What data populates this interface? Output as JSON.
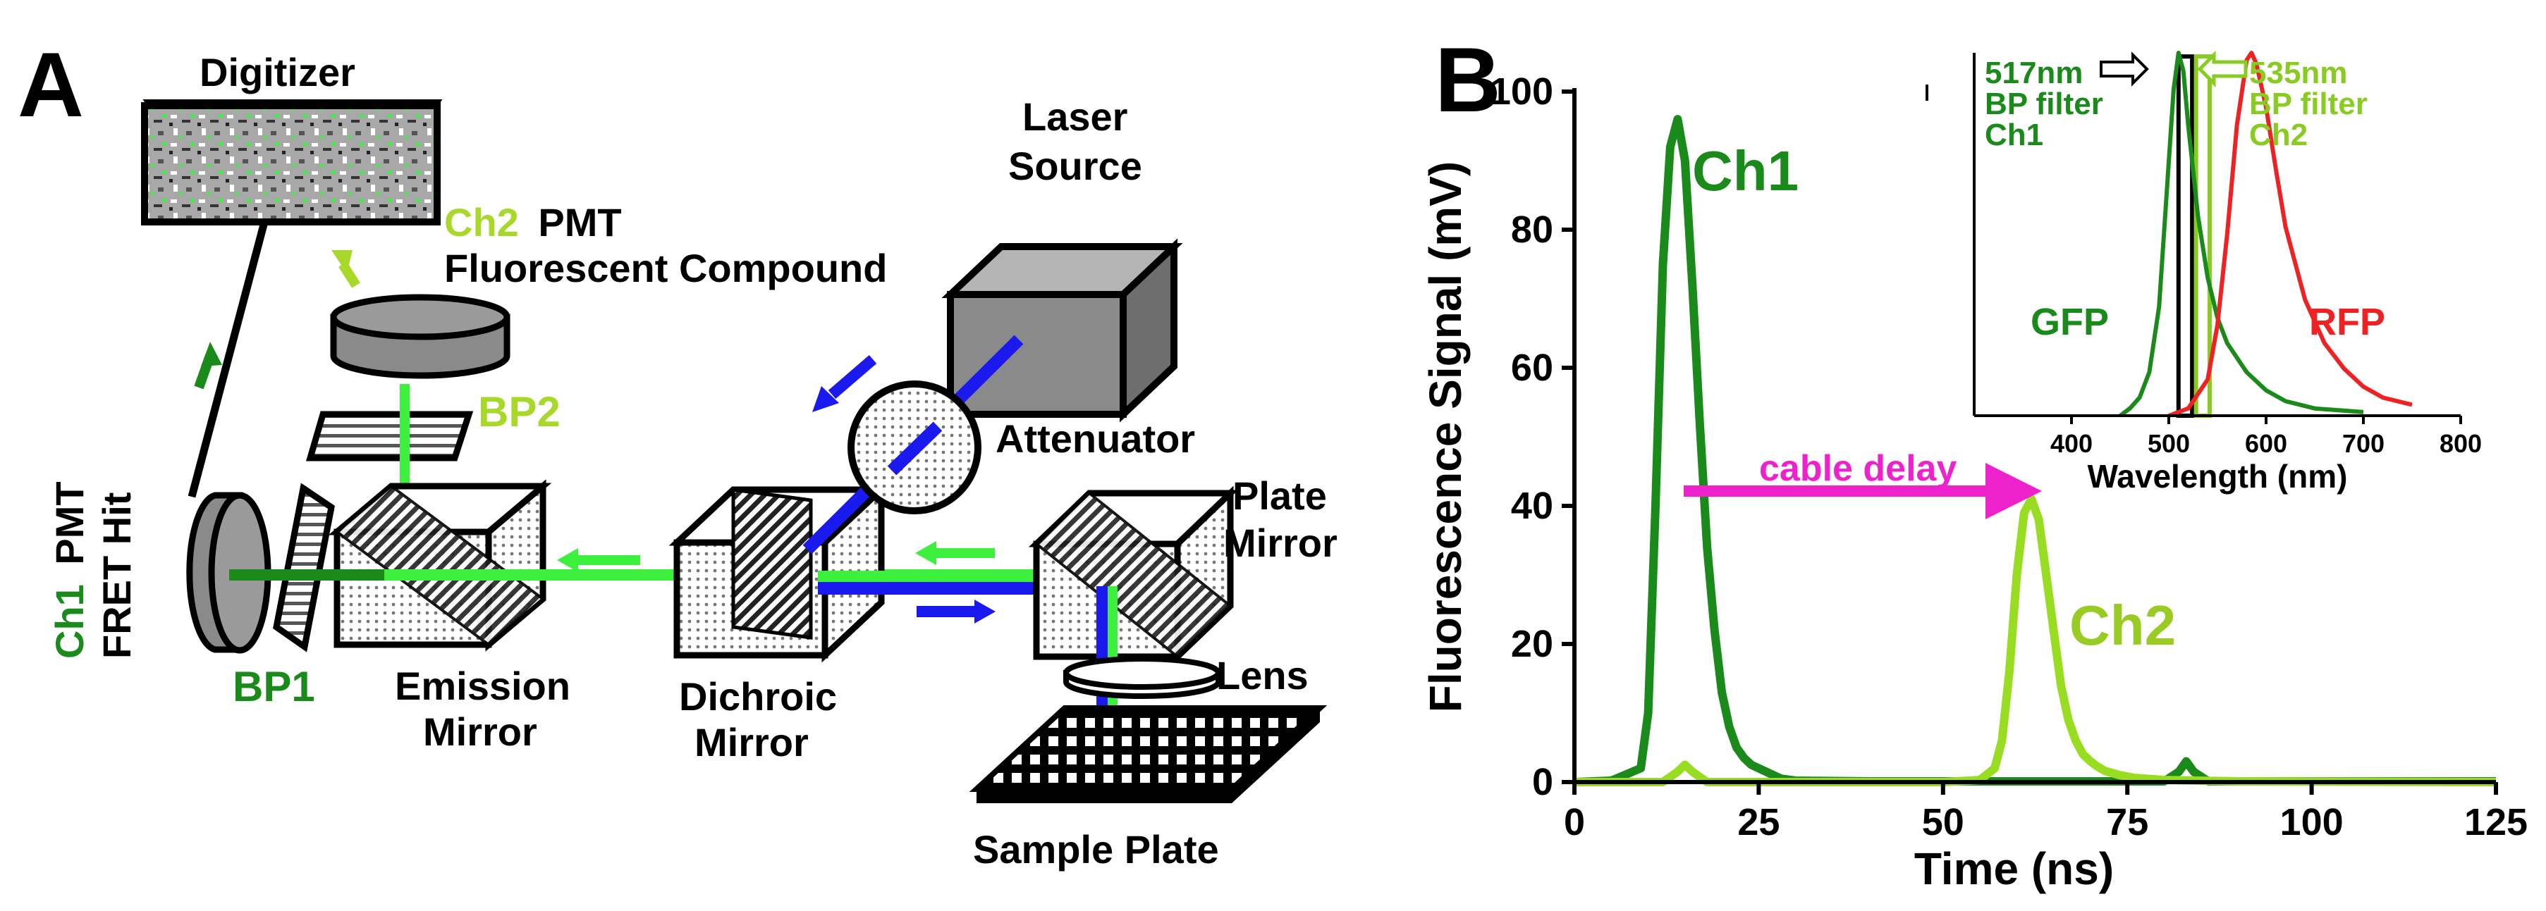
{
  "panels": {
    "a": {
      "letter": "A",
      "digitizer": "Digitizer",
      "ch2_pmt": {
        "channel": "Ch2",
        "rest": "PMT"
      },
      "fluorescent_compound": "Fluorescent Compound",
      "laser_source": [
        "Laser",
        "Source"
      ],
      "attenuator": "Attenuator",
      "bp2": "BP2",
      "bp1": "BP1",
      "ch1_pmt": {
        "channel": "Ch1",
        "rest": "PMT",
        "line2": "FRET Hit"
      },
      "emission_mirror": [
        "Emission",
        "Mirror"
      ],
      "dichroic_mirror": [
        "Dichroic",
        "Mirror"
      ],
      "plate_mirror": [
        "Plate",
        "Mirror"
      ],
      "lens": "Lens",
      "sample_plate": "Sample  Plate",
      "colors": {
        "green_bright": "#3ef03e",
        "green_dark": "#1a8a1a",
        "green_light": "#a8d82a",
        "blue": "#1a1aee",
        "gray": "#8a8a8a"
      }
    },
    "b": {
      "letter": "B",
      "annotations": {
        "ch1": "Ch1",
        "ch2": "Ch2",
        "cable_delay": "cable delay"
      },
      "inset": {
        "filter1": [
          "517nm",
          "BP filter",
          "Ch1"
        ],
        "filter2": [
          "535nm",
          "BP filter",
          "Ch2"
        ],
        "gfp": "GFP",
        "rfp": "RFP"
      }
    }
  },
  "chart_data": [
    {
      "type": "line",
      "xlabel": "Time (ns)",
      "ylabel": "Fluorescence Signal (mV)",
      "xlim": [
        0,
        125
      ],
      "ylim": [
        0,
        100
      ],
      "xticks": [
        0,
        25,
        50,
        75,
        100,
        125
      ],
      "yticks": [
        0,
        20,
        40,
        60,
        80,
        100
      ],
      "series": [
        {
          "name": "Ch1",
          "color": "#1a8a1a",
          "x": [
            0,
            5,
            9,
            10,
            11,
            12,
            13,
            14,
            15,
            16,
            17,
            18,
            19,
            20,
            21,
            22,
            23,
            24,
            25,
            26,
            27,
            28,
            30,
            40,
            60,
            80,
            82,
            83,
            84,
            86,
            100,
            125
          ],
          "y": [
            0,
            0.2,
            2,
            10,
            40,
            75,
            92,
            96,
            90,
            72,
            52,
            34,
            22,
            13,
            8,
            5,
            3.5,
            2.5,
            2,
            1.5,
            1,
            0.5,
            0.2,
            0.1,
            0.1,
            0.1,
            1.5,
            3,
            1.5,
            0.1,
            0.1,
            0.1
          ]
        },
        {
          "name": "Ch2",
          "color": "#99dd22",
          "x": [
            0,
            12,
            14,
            15,
            16,
            18,
            50,
            55,
            57,
            58,
            59,
            60,
            61,
            62,
            63,
            64,
            65,
            66,
            67,
            68,
            69,
            70,
            71,
            72,
            74,
            76,
            80,
            90,
            125
          ],
          "y": [
            0,
            0,
            1.5,
            2.5,
            1.5,
            0,
            0,
            0.3,
            2,
            6,
            16,
            30,
            39,
            41,
            38,
            30,
            22,
            14,
            9,
            6,
            4,
            3,
            2.2,
            1.6,
            1,
            0.6,
            0.3,
            0.1,
            0
          ]
        }
      ]
    },
    {
      "type": "line",
      "xlabel": "Wavelength (nm)",
      "xlim": [
        300,
        800
      ],
      "ylim": [
        0,
        1
      ],
      "xticks": [
        400,
        500,
        600,
        700,
        800
      ],
      "series": [
        {
          "name": "GFP",
          "color": "#1a8a1a",
          "x": [
            450,
            460,
            470,
            480,
            490,
            500,
            505,
            510,
            515,
            520,
            530,
            540,
            550,
            560,
            580,
            600,
            620,
            650,
            700
          ],
          "y": [
            0.0,
            0.02,
            0.05,
            0.12,
            0.3,
            0.7,
            0.9,
            1.0,
            0.95,
            0.8,
            0.55,
            0.38,
            0.27,
            0.2,
            0.12,
            0.07,
            0.04,
            0.02,
            0.01
          ]
        },
        {
          "name": "RFP",
          "color": "#ee2222",
          "x": [
            500,
            520,
            540,
            550,
            560,
            570,
            580,
            585,
            590,
            600,
            610,
            620,
            640,
            660,
            680,
            700,
            720,
            750
          ],
          "y": [
            0.0,
            0.02,
            0.1,
            0.25,
            0.5,
            0.8,
            0.98,
            1.0,
            0.97,
            0.85,
            0.68,
            0.52,
            0.32,
            0.2,
            0.13,
            0.08,
            0.05,
            0.03
          ]
        }
      ],
      "bands": [
        {
          "center": 517,
          "color": "#000000"
        },
        {
          "center": 535,
          "color": "#88cc22"
        }
      ]
    }
  ]
}
